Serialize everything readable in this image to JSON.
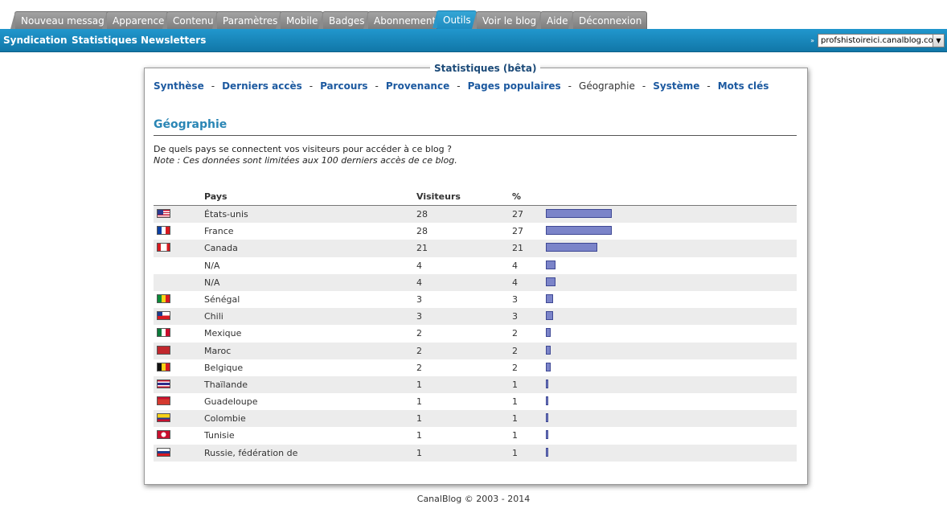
{
  "tabs": [
    {
      "label": "Nouveau message",
      "active": false
    },
    {
      "label": "Apparence",
      "active": false
    },
    {
      "label": "Contenu",
      "active": false
    },
    {
      "label": "Paramètres",
      "active": false
    },
    {
      "label": "Mobile",
      "active": false
    },
    {
      "label": "Badges",
      "active": false
    },
    {
      "label": "Abonnement",
      "active": false
    },
    {
      "label": "Outils",
      "active": true
    },
    {
      "label": "Voir le blog",
      "active": false
    },
    {
      "label": "Aide",
      "active": false
    },
    {
      "label": "Déconnexion",
      "active": false
    }
  ],
  "subnav": {
    "items": [
      "Syndication",
      "Statistiques",
      "Newsletters"
    ],
    "blog_selector": "profshistoireici.canalblog.com",
    "blog_selector_arrows": "»"
  },
  "panel": {
    "legend": "Statistiques (bêta)",
    "menu": [
      {
        "label": "Synthèse",
        "current": false
      },
      {
        "label": "Derniers accès",
        "current": false
      },
      {
        "label": "Parcours",
        "current": false
      },
      {
        "label": "Provenance",
        "current": false
      },
      {
        "label": "Pages populaires",
        "current": false
      },
      {
        "label": "Géographie",
        "current": true
      },
      {
        "label": "Système",
        "current": false
      },
      {
        "label": "Mots clés",
        "current": false
      }
    ],
    "menu_separator": "-",
    "title": "Géographie",
    "intro": "De quels pays se connectent vos visiteurs pour accéder à ce blog ?",
    "note": "Note : Ces données sont limitées aux 100 derniers accès de ce blog.",
    "columns": {
      "pays": "Pays",
      "visiteurs": "Visiteurs",
      "pct": "%"
    },
    "rows": [
      {
        "country": "États-unis",
        "visitors": 28,
        "pct": 27,
        "flag": "us-flag-icon"
      },
      {
        "country": "France",
        "visitors": 28,
        "pct": 27,
        "flag": "fr-flag-icon"
      },
      {
        "country": "Canada",
        "visitors": 21,
        "pct": 21,
        "flag": "ca-flag-icon"
      },
      {
        "country": "N/A",
        "visitors": 4,
        "pct": 4,
        "flag": ""
      },
      {
        "country": "N/A",
        "visitors": 4,
        "pct": 4,
        "flag": ""
      },
      {
        "country": "Sénégal",
        "visitors": 3,
        "pct": 3,
        "flag": "sn-flag-icon"
      },
      {
        "country": "Chili",
        "visitors": 3,
        "pct": 3,
        "flag": "cl-flag-icon"
      },
      {
        "country": "Mexique",
        "visitors": 2,
        "pct": 2,
        "flag": "mx-flag-icon"
      },
      {
        "country": "Maroc",
        "visitors": 2,
        "pct": 2,
        "flag": "ma-flag-icon"
      },
      {
        "country": "Belgique",
        "visitors": 2,
        "pct": 2,
        "flag": "be-flag-icon"
      },
      {
        "country": "Thaïlande",
        "visitors": 1,
        "pct": 1,
        "flag": "th-flag-icon"
      },
      {
        "country": "Guadeloupe",
        "visitors": 1,
        "pct": 1,
        "flag": "gp-flag-icon"
      },
      {
        "country": "Colombie",
        "visitors": 1,
        "pct": 1,
        "flag": "co-flag-icon"
      },
      {
        "country": "Tunisie",
        "visitors": 1,
        "pct": 1,
        "flag": "tn-flag-icon"
      },
      {
        "country": "Russie, fédération de",
        "visitors": 1,
        "pct": 1,
        "flag": "ru-flag-icon"
      }
    ]
  },
  "footer": "CanalBlog © 2003 - 2014",
  "colors": {
    "accent": "#1a8bc3",
    "link": "#1d5aa0",
    "bar": "#7b84c9",
    "title": "#2a86b5"
  }
}
